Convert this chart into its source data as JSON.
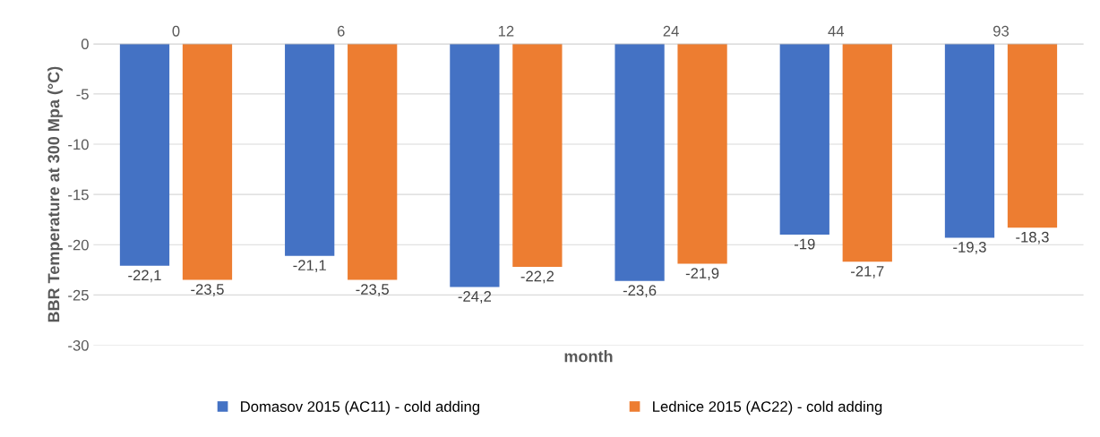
{
  "chart_data": {
    "type": "bar",
    "xlabel": "month",
    "ylabel": "BBR Temperature at 300 Mpa (°C)",
    "categories": [
      "0",
      "6",
      "12",
      "24",
      "44",
      "93"
    ],
    "series": [
      {
        "name": "Domasov 2015 (AC11) - cold adding",
        "color": "#4472c4",
        "values": [
          -22.1,
          -21.1,
          -24.2,
          -23.6,
          -19,
          -19.3
        ],
        "value_labels": [
          "-22,1",
          "-21,1",
          "-24,2",
          "-23,6",
          "-19",
          "-19,3"
        ]
      },
      {
        "name": "Lednice 2015 (AC22) - cold adding",
        "color": "#ed7d31",
        "values": [
          -23.5,
          -23.5,
          -22.2,
          -21.9,
          -21.7,
          -18.3
        ],
        "value_labels": [
          "-23,5",
          "-23,5",
          "-22,2",
          "-21,9",
          "-21,7",
          "-18,3"
        ]
      }
    ],
    "ylim": [
      -30,
      0
    ],
    "yticks": [
      -30,
      -25,
      -20,
      -15,
      -10,
      -5,
      0
    ],
    "grid": "y",
    "legend": "bottom"
  }
}
